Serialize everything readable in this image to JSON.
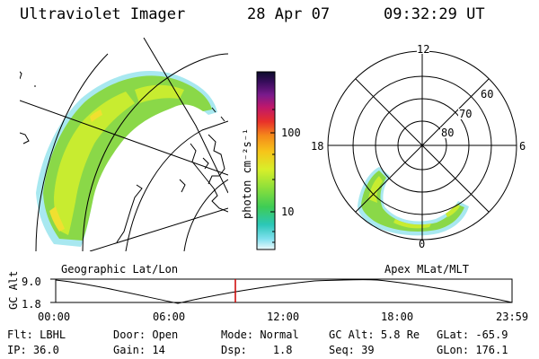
{
  "header": {
    "title": "Ultraviolet Imager",
    "date": "28 Apr 07",
    "time": "09:32:29 UT"
  },
  "colorbar": {
    "label": "photon cm⁻²s⁻¹",
    "ticks": [
      "100",
      "10"
    ],
    "colors": [
      "#0b0b2a",
      "#3a0d5e",
      "#7a1a8c",
      "#c0186a",
      "#e8302a",
      "#f58a1a",
      "#f6c51a",
      "#d8ef2a",
      "#8fe03a",
      "#3ecc55",
      "#2bc7b8",
      "#7fe0ee",
      "#d8f4fa"
    ]
  },
  "geo_map": {
    "label": "Geographic Lat/Lon"
  },
  "polar_map": {
    "label": "Apex MLat/MLT",
    "mlt_labels": {
      "top": "12",
      "left": "18",
      "right": "6",
      "bottom": "0"
    },
    "lat_labels": [
      "60",
      "70",
      "80"
    ]
  },
  "altitude_plot": {
    "ylabel": "GC Alt",
    "yticks": [
      "9.0",
      "1.8"
    ],
    "xticks": [
      "00:00",
      "06:00",
      "12:00",
      "18:00",
      "23:59"
    ],
    "marker_color": "#cc0000"
  },
  "info": {
    "filter_label": "Flt:",
    "filter_value": "LBHL",
    "ip_label": "IP:",
    "ip_value": "36.0",
    "door_label": "Door:",
    "door_value": "Open",
    "gain_label": "Gain:",
    "gain_value": "14",
    "mode_label": "Mode:",
    "mode_value": "Normal",
    "dsp_label": "Dsp:",
    "dsp_value": "1.8",
    "gcalt_label": "GC Alt:",
    "gcalt_value": "5.8 Re",
    "seq_label": "Seq:",
    "seq_value": "39",
    "glat_label": "GLat:",
    "glat_value": "-65.9",
    "glon_label": "GLon:",
    "glon_value": "176.1"
  }
}
